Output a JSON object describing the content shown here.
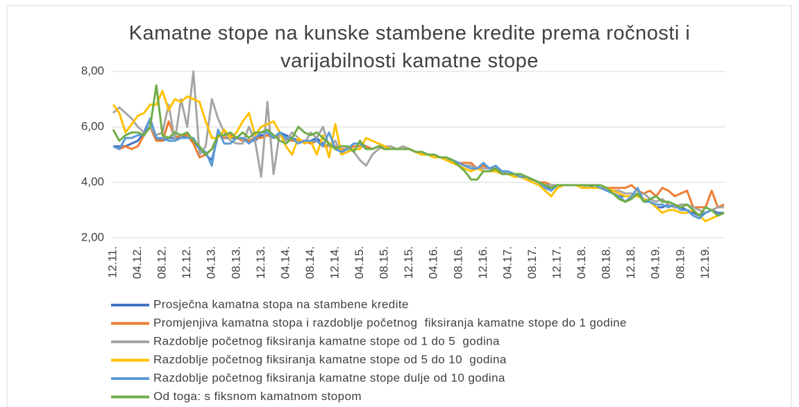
{
  "chart_data": {
    "type": "line",
    "title": "Kamatne stope na kunske stambene kredite prema ročnosti i varijabilnosti kamatne stope",
    "categories": [
      "12.11.",
      null,
      null,
      null,
      "04.12.",
      null,
      null,
      null,
      "08.12.",
      null,
      null,
      null,
      "12.12.",
      null,
      null,
      null,
      "04.13.",
      null,
      null,
      null,
      "08.13.",
      null,
      null,
      null,
      "12.13.",
      null,
      null,
      null,
      "04.14.",
      null,
      null,
      null,
      "08.14.",
      null,
      null,
      null,
      "12.14.",
      null,
      null,
      null,
      "04.15.",
      null,
      null,
      null,
      "08.15.",
      null,
      null,
      null,
      "12.15.",
      null,
      null,
      null,
      "04.16.",
      null,
      null,
      null,
      "08.16.",
      null,
      null,
      null,
      "12.16.",
      null,
      null,
      null,
      "04.17.",
      null,
      null,
      null,
      "08.17.",
      null,
      null,
      null,
      "12.17.",
      null,
      null,
      null,
      "04.18.",
      null,
      null,
      null,
      "08.18.",
      null,
      null,
      null,
      "12.18.",
      null,
      null,
      null,
      "04.19.",
      null,
      null,
      null,
      "08.19.",
      null,
      null,
      null,
      "12.19.",
      null,
      null,
      null
    ],
    "ylim": [
      2,
      8
    ],
    "yticks": [
      {
        "value": 2,
        "label": "2,00"
      },
      {
        "value": 4,
        "label": "4,00"
      },
      {
        "value": 6,
        "label": "6,00"
      },
      {
        "value": 8,
        "label": "8,00"
      }
    ],
    "grid": true,
    "legend": "bottom",
    "series": [
      {
        "name": "Prosječna kamatna stopa na stambene kredite",
        "color": "#4472c4",
        "values": [
          5.3,
          5.3,
          5.3,
          5.4,
          5.5,
          5.8,
          6.3,
          5.6,
          5.5,
          5.6,
          5.6,
          5.6,
          5.7,
          5.5,
          5.2,
          5.0,
          4.8,
          5.7,
          5.6,
          5.6,
          5.6,
          5.6,
          5.5,
          5.5,
          5.7,
          5.7,
          5.6,
          5.8,
          5.7,
          5.6,
          5.5,
          5.5,
          5.5,
          5.6,
          5.4,
          5.3,
          5.3,
          5.2,
          5.2,
          5.4,
          5.4,
          5.3,
          5.2,
          5.3,
          5.3,
          5.2,
          5.2,
          5.2,
          5.2,
          5.1,
          5.1,
          5.0,
          5.0,
          4.9,
          4.9,
          4.8,
          4.7,
          4.6,
          4.6,
          4.5,
          4.5,
          4.5,
          4.5,
          4.4,
          4.3,
          4.3,
          4.2,
          4.2,
          4.1,
          4.0,
          3.8,
          3.8,
          3.9,
          3.9,
          3.9,
          3.9,
          3.9,
          3.9,
          3.8,
          3.8,
          3.7,
          3.6,
          3.5,
          3.5,
          3.5,
          3.6,
          3.4,
          3.3,
          3.1,
          3.1,
          3.2,
          3.1,
          3.1,
          3.0,
          2.9,
          2.8,
          2.9,
          3.0,
          2.9,
          2.9
        ]
      },
      {
        "name": "Promjenjiva kamatna stopa i razdoblje početnog  fiksiranja kamatne stope do 1 godine",
        "color": "#ed7d31",
        "values": [
          5.3,
          5.2,
          5.3,
          5.2,
          5.3,
          5.7,
          6.0,
          5.5,
          5.5,
          6.2,
          5.6,
          5.7,
          5.7,
          5.4,
          4.9,
          5.0,
          5.2,
          5.7,
          5.6,
          5.7,
          5.6,
          5.5,
          5.5,
          5.6,
          5.6,
          5.7,
          5.6,
          5.7,
          5.6,
          5.5,
          5.5,
          5.5,
          5.4,
          5.5,
          5.3,
          5.3,
          5.3,
          5.2,
          5.2,
          5.3,
          5.3,
          5.3,
          5.2,
          5.3,
          5.2,
          5.2,
          5.2,
          5.2,
          5.2,
          5.1,
          5.0,
          5.0,
          5.0,
          4.9,
          4.9,
          4.8,
          4.7,
          4.7,
          4.7,
          4.5,
          4.6,
          4.5,
          4.5,
          4.4,
          4.3,
          4.3,
          4.2,
          4.2,
          4.1,
          4.0,
          4.0,
          3.9,
          3.9,
          3.9,
          3.9,
          3.9,
          3.9,
          3.8,
          3.8,
          3.8,
          3.8,
          3.8,
          3.8,
          3.8,
          3.9,
          3.7,
          3.6,
          3.7,
          3.5,
          3.8,
          3.7,
          3.5,
          3.6,
          3.7,
          3.1,
          3.1,
          3.1,
          3.7,
          3.1,
          3.2
        ]
      },
      {
        "name": "Razdoblje početnog fiksiranja kamatne stope od 1 do 5  godina",
        "color": "#a5a5a5",
        "values": [
          6.5,
          6.7,
          6.5,
          6.3,
          6.0,
          5.8,
          6.0,
          5.7,
          5.8,
          6.8,
          5.5,
          7.0,
          6.0,
          8.0,
          5.0,
          5.3,
          7.0,
          6.3,
          5.8,
          5.5,
          5.4,
          5.4,
          6.0,
          5.5,
          4.2,
          6.9,
          4.3,
          5.8,
          5.5,
          5.8,
          5.6,
          5.4,
          5.8,
          5.6,
          6.0,
          5.3,
          5.5,
          5.0,
          5.3,
          5.1,
          4.8,
          4.6,
          5.0,
          5.2,
          5.3,
          5.3,
          5.2,
          5.3,
          5.2,
          5.1,
          5.1,
          5.0,
          5.0,
          4.9,
          4.8,
          4.8,
          4.7,
          4.6,
          4.6,
          4.5,
          4.5,
          4.5,
          4.4,
          4.4,
          4.3,
          4.3,
          4.2,
          4.1,
          4.1,
          4.0,
          3.9,
          3.9,
          3.9,
          3.9,
          3.9,
          3.9,
          3.9,
          3.8,
          3.8,
          3.8,
          3.8,
          3.7,
          3.7,
          3.6,
          3.6,
          3.5,
          3.6,
          3.4,
          3.3,
          3.4,
          3.2,
          3.1,
          3.2,
          3.2,
          3.1,
          3.0,
          2.9,
          3.0,
          3.1,
          3.1
        ]
      },
      {
        "name": "Razdoblje početnog fiksiranja kamatne stope od 5 do 10  godina",
        "color": "#ffc000",
        "values": [
          6.8,
          6.5,
          5.8,
          6.1,
          6.4,
          6.5,
          6.8,
          6.8,
          7.3,
          6.6,
          7.0,
          6.9,
          7.1,
          7.0,
          6.9,
          6.2,
          5.6,
          5.6,
          5.9,
          5.6,
          5.8,
          6.2,
          6.5,
          5.7,
          6.0,
          6.1,
          6.2,
          5.8,
          5.3,
          5.0,
          5.6,
          5.4,
          5.5,
          5.0,
          5.7,
          4.9,
          6.1,
          5.0,
          5.1,
          5.2,
          5.2,
          5.6,
          5.5,
          5.4,
          5.3,
          5.2,
          5.2,
          5.2,
          5.2,
          5.1,
          5.0,
          5.0,
          4.9,
          4.9,
          4.8,
          4.7,
          4.6,
          4.5,
          4.4,
          4.5,
          4.4,
          4.4,
          4.4,
          4.3,
          4.3,
          4.2,
          4.2,
          4.1,
          4.0,
          3.9,
          3.7,
          3.5,
          3.8,
          3.9,
          3.9,
          3.9,
          3.8,
          3.8,
          3.8,
          3.8,
          3.8,
          3.7,
          3.6,
          3.5,
          3.5,
          3.5,
          3.4,
          3.3,
          3.1,
          2.9,
          3.0,
          3.0,
          2.9,
          2.9,
          3.0,
          2.8,
          2.6,
          2.7,
          2.8,
          2.9
        ]
      },
      {
        "name": "Razdoblje početnog fiksiranja kamatne stope dulje od 10 godina",
        "color": "#5b9bd5",
        "values": [
          5.3,
          5.2,
          5.6,
          5.6,
          5.7,
          5.7,
          6.3,
          5.6,
          5.6,
          5.5,
          5.5,
          5.6,
          5.6,
          5.6,
          5.2,
          5.1,
          4.6,
          5.9,
          5.4,
          5.4,
          5.6,
          5.6,
          5.4,
          5.6,
          5.8,
          5.8,
          5.6,
          5.8,
          5.6,
          5.6,
          5.4,
          5.5,
          5.5,
          5.5,
          5.3,
          5.8,
          5.2,
          5.1,
          5.2,
          5.4,
          5.4,
          5.2,
          5.2,
          5.3,
          5.2,
          5.2,
          5.2,
          5.2,
          5.2,
          5.1,
          5.1,
          5.0,
          5.0,
          4.9,
          4.9,
          4.8,
          4.7,
          4.6,
          4.5,
          4.5,
          4.7,
          4.5,
          4.6,
          4.4,
          4.4,
          4.3,
          4.2,
          4.2,
          4.1,
          4.0,
          3.8,
          3.7,
          3.9,
          3.9,
          3.9,
          3.9,
          3.9,
          3.9,
          3.9,
          3.8,
          3.7,
          3.6,
          3.5,
          3.3,
          3.5,
          3.8,
          3.3,
          3.3,
          3.2,
          3.2,
          3.1,
          3.2,
          3.0,
          3.0,
          2.8,
          2.7,
          2.9,
          3.0,
          2.8,
          2.9
        ]
      },
      {
        "name": "Od toga: s fiksnom kamatnom stopom",
        "color": "#70ad47",
        "values": [
          5.9,
          5.5,
          5.7,
          5.8,
          5.8,
          5.7,
          6.0,
          7.5,
          5.7,
          5.6,
          5.8,
          5.7,
          5.8,
          5.5,
          5.3,
          5.0,
          5.2,
          5.7,
          5.7,
          5.8,
          5.6,
          5.8,
          5.6,
          5.8,
          5.8,
          5.9,
          5.7,
          5.5,
          5.4,
          5.6,
          6.0,
          5.8,
          5.7,
          5.8,
          5.6,
          5.4,
          5.2,
          5.3,
          5.3,
          5.1,
          5.5,
          5.2,
          5.2,
          5.3,
          5.2,
          5.2,
          5.2,
          5.2,
          5.2,
          5.1,
          5.1,
          5.0,
          5.0,
          4.9,
          4.9,
          4.8,
          4.6,
          4.4,
          4.1,
          4.1,
          4.4,
          4.4,
          4.5,
          4.3,
          4.3,
          4.3,
          4.3,
          4.2,
          4.1,
          4.0,
          3.9,
          3.8,
          3.9,
          3.9,
          3.9,
          3.9,
          3.9,
          3.9,
          3.9,
          3.9,
          3.8,
          3.6,
          3.4,
          3.3,
          3.4,
          3.6,
          3.3,
          3.4,
          3.5,
          3.3,
          3.3,
          3.2,
          3.1,
          3.2,
          3.0,
          2.8,
          3.1,
          3.0,
          2.8,
          2.9
        ]
      }
    ]
  }
}
